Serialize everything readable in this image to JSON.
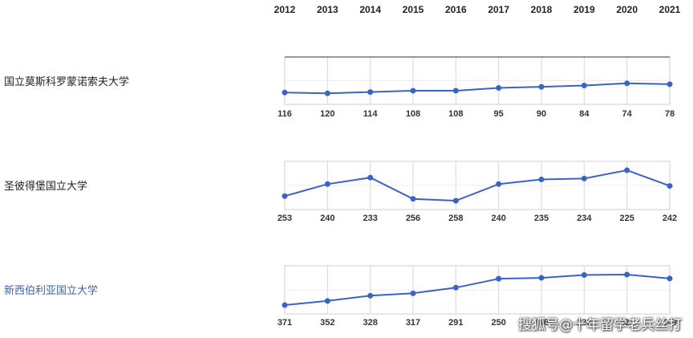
{
  "chart_data": {
    "type": "line",
    "x": [
      "2012",
      "2013",
      "2014",
      "2015",
      "2016",
      "2017",
      "2018",
      "2019",
      "2020",
      "2021"
    ],
    "series": [
      {
        "name": "国立莫斯科罗蒙诺索夫大学",
        "values": [
          116,
          120,
          114,
          108,
          108,
          95,
          90,
          84,
          74,
          78
        ]
      },
      {
        "name": "圣彼得堡国立大学",
        "values": [
          253,
          240,
          233,
          256,
          258,
          240,
          235,
          234,
          225,
          242
        ]
      },
      {
        "name": "新西伯利亚国立大学",
        "values": [
          371,
          352,
          328,
          317,
          291,
          250,
          246,
          233,
          231,
          249
        ]
      }
    ],
    "y_inverted": true,
    "grid": true,
    "colors": {
      "line": "#3a63c4",
      "highlight_label": "#3d63a8"
    }
  },
  "watermark": "搜狐号@十年留学老兵丝打"
}
